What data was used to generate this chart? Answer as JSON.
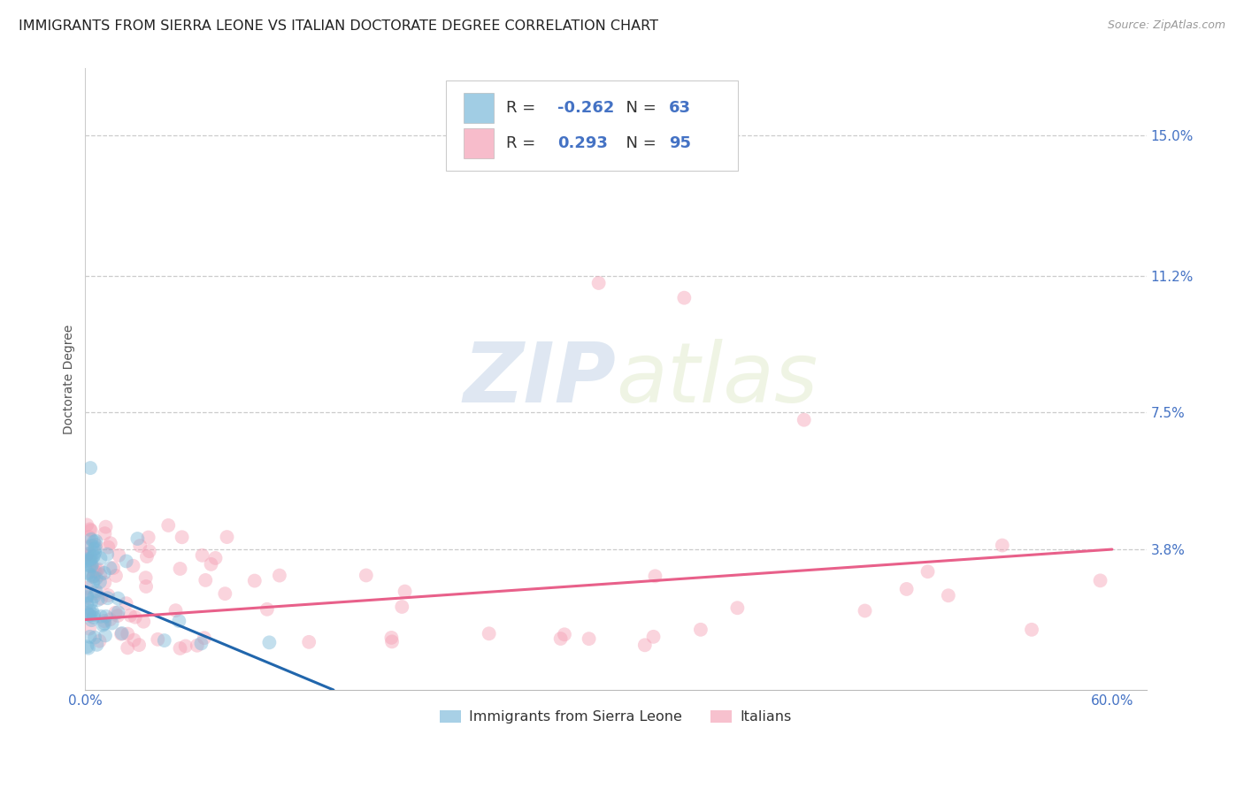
{
  "title": "IMMIGRANTS FROM SIERRA LEONE VS ITALIAN DOCTORATE DEGREE CORRELATION CHART",
  "source": "Source: ZipAtlas.com",
  "ylabel": "Doctorate Degree",
  "xlim": [
    0.0,
    0.62
  ],
  "ylim": [
    0.0,
    0.168
  ],
  "yticks": [
    0.038,
    0.075,
    0.112,
    0.15
  ],
  "ytick_labels": [
    "3.8%",
    "7.5%",
    "11.2%",
    "15.0%"
  ],
  "xtick_positions": [
    0.0,
    0.1,
    0.2,
    0.3,
    0.4,
    0.5,
    0.6
  ],
  "xtick_labels": [
    "0.0%",
    "",
    "",
    "",
    "",
    "",
    "60.0%"
  ],
  "series1_color": "#7ab8d9",
  "series2_color": "#f4a0b5",
  "series1_label": "Immigrants from Sierra Leone",
  "series2_label": "Italians",
  "R1": -0.262,
  "N1": 63,
  "R2": 0.293,
  "N2": 95,
  "trendline1_color": "#2166ac",
  "trendline2_color": "#e8608a",
  "watermark_zip": "ZIP",
  "watermark_atlas": "atlas",
  "background_color": "#ffffff",
  "title_fontsize": 11.5,
  "source_fontsize": 9,
  "axis_label_fontsize": 10,
  "tick_fontsize": 11,
  "legend_fontsize": 13,
  "marker_size": 130,
  "marker_alpha": 0.45,
  "blue_trendline_x0": 0.0,
  "blue_trendline_y0": 0.028,
  "blue_trendline_x1": 0.145,
  "blue_trendline_y1": 0.0,
  "pink_trendline_x0": 0.0,
  "pink_trendline_y0": 0.019,
  "pink_trendline_x1": 0.6,
  "pink_trendline_y1": 0.038
}
